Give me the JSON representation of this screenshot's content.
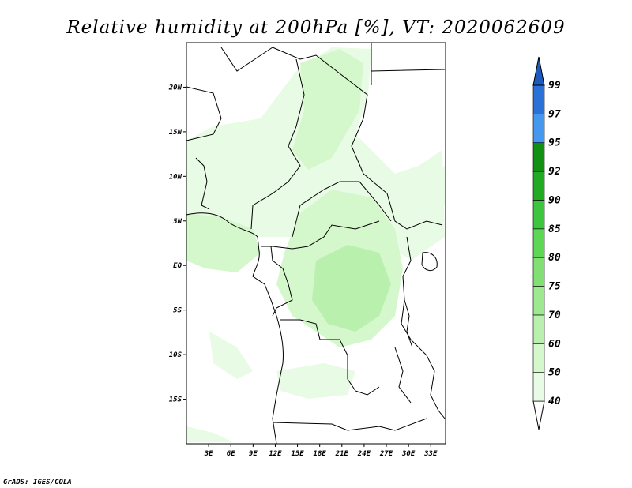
{
  "title": "Relative humidity at 200hPa [%], VT: 2020062609",
  "credit": "GrADS: IGES/COLA",
  "map": {
    "lon_range": [
      0,
      35
    ],
    "lat_range": [
      -20,
      25
    ],
    "lat_ticks": [
      {
        "value": 20,
        "label": "20N"
      },
      {
        "value": 15,
        "label": "15N"
      },
      {
        "value": 10,
        "label": "10N"
      },
      {
        "value": 5,
        "label": "5N"
      },
      {
        "value": 0,
        "label": "EQ"
      },
      {
        "value": -5,
        "label": "5S"
      },
      {
        "value": -10,
        "label": "10S"
      },
      {
        "value": -15,
        "label": "15S"
      }
    ],
    "lon_ticks": [
      {
        "value": 3,
        "label": "3E"
      },
      {
        "value": 6,
        "label": "6E"
      },
      {
        "value": 9,
        "label": "9E"
      },
      {
        "value": 12,
        "label": "12E"
      },
      {
        "value": 15,
        "label": "15E"
      },
      {
        "value": 18,
        "label": "18E"
      },
      {
        "value": 21,
        "label": "21E"
      },
      {
        "value": 24,
        "label": "24E"
      },
      {
        "value": 27,
        "label": "27E"
      },
      {
        "value": 30,
        "label": "30E"
      },
      {
        "value": 33,
        "label": "33E"
      }
    ]
  },
  "colorbar": {
    "levels": [
      {
        "label": "40",
        "color": "#e8fbe4"
      },
      {
        "label": "50",
        "color": "#d4f7cc"
      },
      {
        "label": "60",
        "color": "#b9f0ae"
      },
      {
        "label": "70",
        "color": "#9ee890"
      },
      {
        "label": "75",
        "color": "#82df74"
      },
      {
        "label": "80",
        "color": "#5ed755"
      },
      {
        "label": "85",
        "color": "#3dc63d"
      },
      {
        "label": "90",
        "color": "#22aa22"
      },
      {
        "label": "92",
        "color": "#129012"
      },
      {
        "label": "95",
        "color": "#4499ee"
      },
      {
        "label": "97",
        "color": "#2a72d8"
      },
      {
        "label": "99",
        "color": "#1e5bbf"
      }
    ],
    "under_color": "#ffffff",
    "over_color": "#1e5bbf"
  }
}
